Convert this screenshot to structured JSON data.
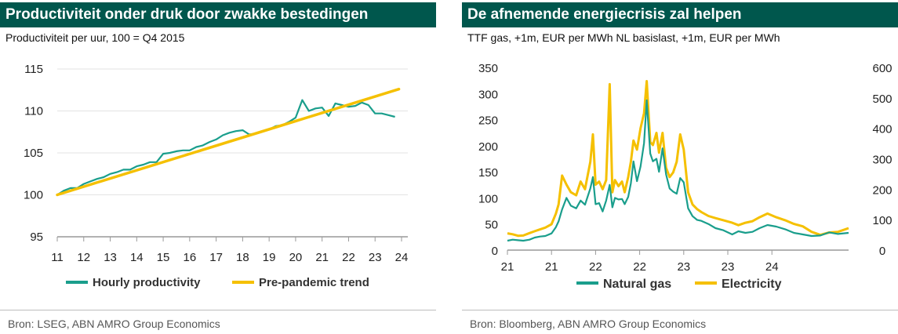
{
  "colors": {
    "header_bg": "#00574d",
    "teal": "#1a9e8c",
    "yellow": "#f5c000",
    "axis": "#999999"
  },
  "left": {
    "title": "Productiviteit onder druk door zwakke bestedingen",
    "subtitle": "Productiviteit per uur, 100 = Q4 2015",
    "source": "Bron: LSEG, ABN AMRO Group Economics"
  },
  "right": {
    "title": "De afnemende energiecrisis zal helpen",
    "subtitle": "TTF gas, +1m, EUR per MWh NL basislast, +1m, EUR per MWh",
    "source": "Bron: Bloomberg, ABN AMRO Group Economics"
  },
  "chart_data": [
    {
      "type": "line",
      "x_ticks": [
        "11",
        "12",
        "13",
        "14",
        "15",
        "16",
        "17",
        "18",
        "19",
        "20",
        "21",
        "22",
        "23",
        "24"
      ],
      "xlim": [
        2011,
        2024
      ],
      "ylim": [
        95,
        115
      ],
      "y_ticks": [
        "95",
        "100",
        "105",
        "110",
        "115"
      ],
      "grid": "horizontal",
      "legend_position": "bottom",
      "series": [
        {
          "name": "Hourly productivity",
          "color": "#1a9e8c",
          "x": [
            2011.0,
            2011.25,
            2011.5,
            2011.75,
            2012.0,
            2012.25,
            2012.5,
            2012.75,
            2013.0,
            2013.25,
            2013.5,
            2013.75,
            2014.0,
            2014.25,
            2014.5,
            2014.75,
            2015.0,
            2015.25,
            2015.5,
            2015.75,
            2016.0,
            2016.25,
            2016.5,
            2016.75,
            2017.0,
            2017.25,
            2017.5,
            2017.75,
            2018.0,
            2018.25,
            2018.5,
            2018.75,
            2019.0,
            2019.25,
            2019.5,
            2019.75,
            2020.0,
            2020.25,
            2020.5,
            2020.75,
            2021.0,
            2021.25,
            2021.5,
            2021.75,
            2022.0,
            2022.25,
            2022.5,
            2022.75,
            2023.0,
            2023.25,
            2023.5,
            2023.75
          ],
          "y": [
            100.0,
            100.5,
            100.8,
            100.8,
            101.3,
            101.6,
            101.9,
            102.1,
            102.5,
            102.7,
            103.0,
            103.0,
            103.4,
            103.6,
            103.9,
            103.9,
            104.9,
            105.0,
            105.2,
            105.3,
            105.3,
            105.7,
            105.9,
            106.3,
            106.6,
            107.1,
            107.4,
            107.6,
            107.7,
            107.2,
            107.3,
            107.6,
            107.8,
            108.2,
            108.3,
            108.7,
            109.2,
            111.3,
            110.0,
            110.3,
            110.4,
            109.4,
            110.9,
            110.7,
            110.5,
            110.6,
            111.0,
            110.7,
            109.7,
            109.7,
            109.5,
            109.3
          ]
        },
        {
          "name": "Pre-pandemic trend",
          "color": "#f5c000",
          "x": [
            2011.0,
            2023.9
          ],
          "y": [
            100.0,
            112.6
          ]
        }
      ]
    },
    {
      "type": "line",
      "x_ticks": [
        "21",
        "21",
        "22",
        "22",
        "23",
        "23",
        "24"
      ],
      "x_tick_values": [
        2021.0,
        2021.5,
        2022.0,
        2022.5,
        2023.0,
        2023.5,
        2024.0
      ],
      "xlim": [
        2021.0,
        2024.87
      ],
      "ylim_left": [
        0,
        350
      ],
      "y_ticks_left": [
        "0",
        "50",
        "100",
        "150",
        "200",
        "250",
        "300",
        "350"
      ],
      "ylim_right": [
        0,
        600
      ],
      "y_ticks_right": [
        "0",
        "100",
        "200",
        "300",
        "400",
        "500",
        "600"
      ],
      "grid": "none",
      "legend_position": "bottom",
      "series": [
        {
          "name": "Natural gas",
          "color": "#1a9e8c",
          "axis": "left",
          "x": [
            2021.0,
            2021.06,
            2021.12,
            2021.18,
            2021.25,
            2021.31,
            2021.37,
            2021.43,
            2021.5,
            2021.55,
            2021.58,
            2021.62,
            2021.67,
            2021.72,
            2021.78,
            2021.83,
            2021.88,
            2021.94,
            2021.97,
            2022.0,
            2022.04,
            2022.08,
            2022.12,
            2022.16,
            2022.19,
            2022.22,
            2022.26,
            2022.3,
            2022.33,
            2022.37,
            2022.4,
            2022.43,
            2022.47,
            2022.51,
            2022.55,
            2022.58,
            2022.62,
            2022.65,
            2022.69,
            2022.72,
            2022.76,
            2022.8,
            2022.84,
            2022.88,
            2022.92,
            2022.96,
            2023.0,
            2023.05,
            2023.1,
            2023.15,
            2023.2,
            2023.28,
            2023.36,
            2023.45,
            2023.55,
            2023.62,
            2023.7,
            2023.78,
            2023.86,
            2023.95,
            2024.05,
            2024.15,
            2024.25,
            2024.35,
            2024.45,
            2024.55,
            2024.65,
            2024.75,
            2024.87
          ],
          "y": [
            18,
            20,
            19,
            18,
            20,
            24,
            26,
            27,
            32,
            44,
            55,
            78,
            100,
            85,
            80,
            95,
            87,
            118,
            140,
            88,
            90,
            74,
            95,
            125,
            82,
            100,
            97,
            98,
            88,
            102,
            128,
            170,
            132,
            160,
            205,
            287,
            185,
            170,
            175,
            150,
            195,
            145,
            118,
            112,
            108,
            138,
            130,
            80,
            65,
            58,
            56,
            50,
            42,
            38,
            30,
            36,
            33,
            35,
            42,
            48,
            45,
            40,
            33,
            30,
            27,
            28,
            34,
            31,
            33
          ]
        },
        {
          "name": "Electricity",
          "color": "#f5c000",
          "axis": "right",
          "x": [
            2021.0,
            2021.06,
            2021.12,
            2021.18,
            2021.25,
            2021.31,
            2021.37,
            2021.43,
            2021.5,
            2021.55,
            2021.58,
            2021.62,
            2021.67,
            2021.72,
            2021.78,
            2021.83,
            2021.88,
            2021.94,
            2021.97,
            2022.0,
            2022.04,
            2022.08,
            2022.12,
            2022.16,
            2022.19,
            2022.22,
            2022.26,
            2022.3,
            2022.33,
            2022.37,
            2022.4,
            2022.43,
            2022.47,
            2022.51,
            2022.55,
            2022.58,
            2022.62,
            2022.65,
            2022.69,
            2022.72,
            2022.76,
            2022.8,
            2022.84,
            2022.88,
            2022.92,
            2022.96,
            2023.0,
            2023.05,
            2023.1,
            2023.15,
            2023.2,
            2023.28,
            2023.36,
            2023.45,
            2023.55,
            2023.62,
            2023.7,
            2023.78,
            2023.86,
            2023.95,
            2024.05,
            2024.15,
            2024.25,
            2024.35,
            2024.45,
            2024.55,
            2024.65,
            2024.75,
            2024.87
          ],
          "y": [
            55,
            52,
            47,
            48,
            56,
            62,
            68,
            74,
            85,
            120,
            150,
            245,
            215,
            190,
            180,
            225,
            200,
            290,
            380,
            215,
            225,
            200,
            230,
            545,
            190,
            230,
            210,
            225,
            190,
            240,
            290,
            360,
            330,
            400,
            450,
            555,
            355,
            345,
            385,
            320,
            385,
            270,
            240,
            255,
            290,
            380,
            330,
            190,
            150,
            135,
            125,
            112,
            105,
            98,
            90,
            82,
            90,
            95,
            108,
            120,
            108,
            98,
            86,
            78,
            60,
            50,
            58,
            60,
            72
          ]
        }
      ]
    }
  ]
}
